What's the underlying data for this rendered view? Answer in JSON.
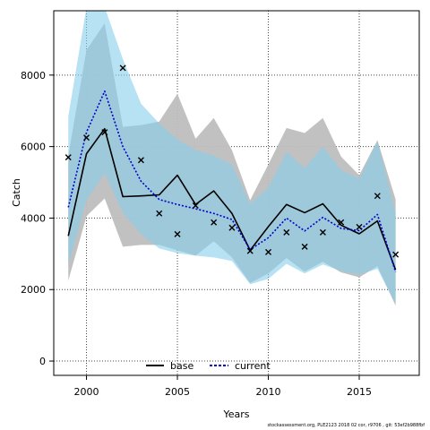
{
  "chart_data": {
    "type": "line",
    "xlabel": "Years",
    "ylabel": "Catch",
    "xlim": [
      1998.2,
      2018.3
    ],
    "ylim": [
      -400,
      9800
    ],
    "x_ticks": [
      2000,
      2005,
      2010,
      2015
    ],
    "y_ticks": [
      0,
      2000,
      4000,
      6000,
      8000
    ],
    "grid": true,
    "legend_position": "bottom-center",
    "x": [
      1999,
      2000,
      2001,
      2002,
      2003,
      2004,
      2005,
      2006,
      2007,
      2008,
      2009,
      2010,
      2011,
      2012,
      2013,
      2014,
      2015,
      2016,
      2017
    ],
    "observed": {
      "marker": "x",
      "values": [
        5700,
        6250,
        6400,
        8200,
        5620,
        4130,
        3550,
        4350,
        3880,
        3730,
        3080,
        3050,
        3600,
        3200,
        3600,
        3880,
        3750,
        4620,
        2980
      ]
    },
    "series": [
      {
        "name": "base",
        "color": "#000000",
        "line_style": "solid",
        "band_color": "#bebebe",
        "values": [
          3500,
          5800,
          6500,
          4600,
          4620,
          4650,
          5200,
          4380,
          4760,
          4130,
          3100,
          3760,
          4380,
          4150,
          4400,
          3800,
          3560,
          3920,
          2550
        ],
        "lower": [
          2250,
          4050,
          4550,
          3200,
          3250,
          3250,
          3100,
          2950,
          3350,
          2900,
          2180,
          2450,
          2880,
          2500,
          2780,
          2480,
          2340,
          2650,
          1550
        ],
        "upper": [
          5750,
          8700,
          9450,
          6550,
          6600,
          6700,
          7480,
          6220,
          6800,
          5900,
          4500,
          5500,
          6520,
          6380,
          6800,
          5720,
          5200,
          6180,
          4520
        ]
      },
      {
        "name": "current",
        "color": "#0000cd",
        "line_style": "dashed",
        "band_color": "#87ceeb",
        "values": [
          4300,
          6400,
          7550,
          6000,
          5030,
          4520,
          4380,
          4260,
          4130,
          3960,
          3120,
          3450,
          4000,
          3640,
          4020,
          3710,
          3650,
          4100,
          2490
        ],
        "lower": [
          2700,
          4500,
          5250,
          4150,
          3550,
          3150,
          3020,
          2950,
          2900,
          2800,
          2150,
          2300,
          2720,
          2450,
          2700,
          2520,
          2420,
          2580,
          1600
        ],
        "upper": [
          6850,
          9900,
          9900,
          8450,
          7200,
          6650,
          6200,
          5900,
          5750,
          5500,
          4400,
          4850,
          5850,
          5400,
          6000,
          5350,
          5100,
          6150,
          4150
        ]
      }
    ]
  },
  "footnote": "stockassessment.org, PLE2123 2018 02 cor, r9706 , git: 53ef2b988fbf"
}
